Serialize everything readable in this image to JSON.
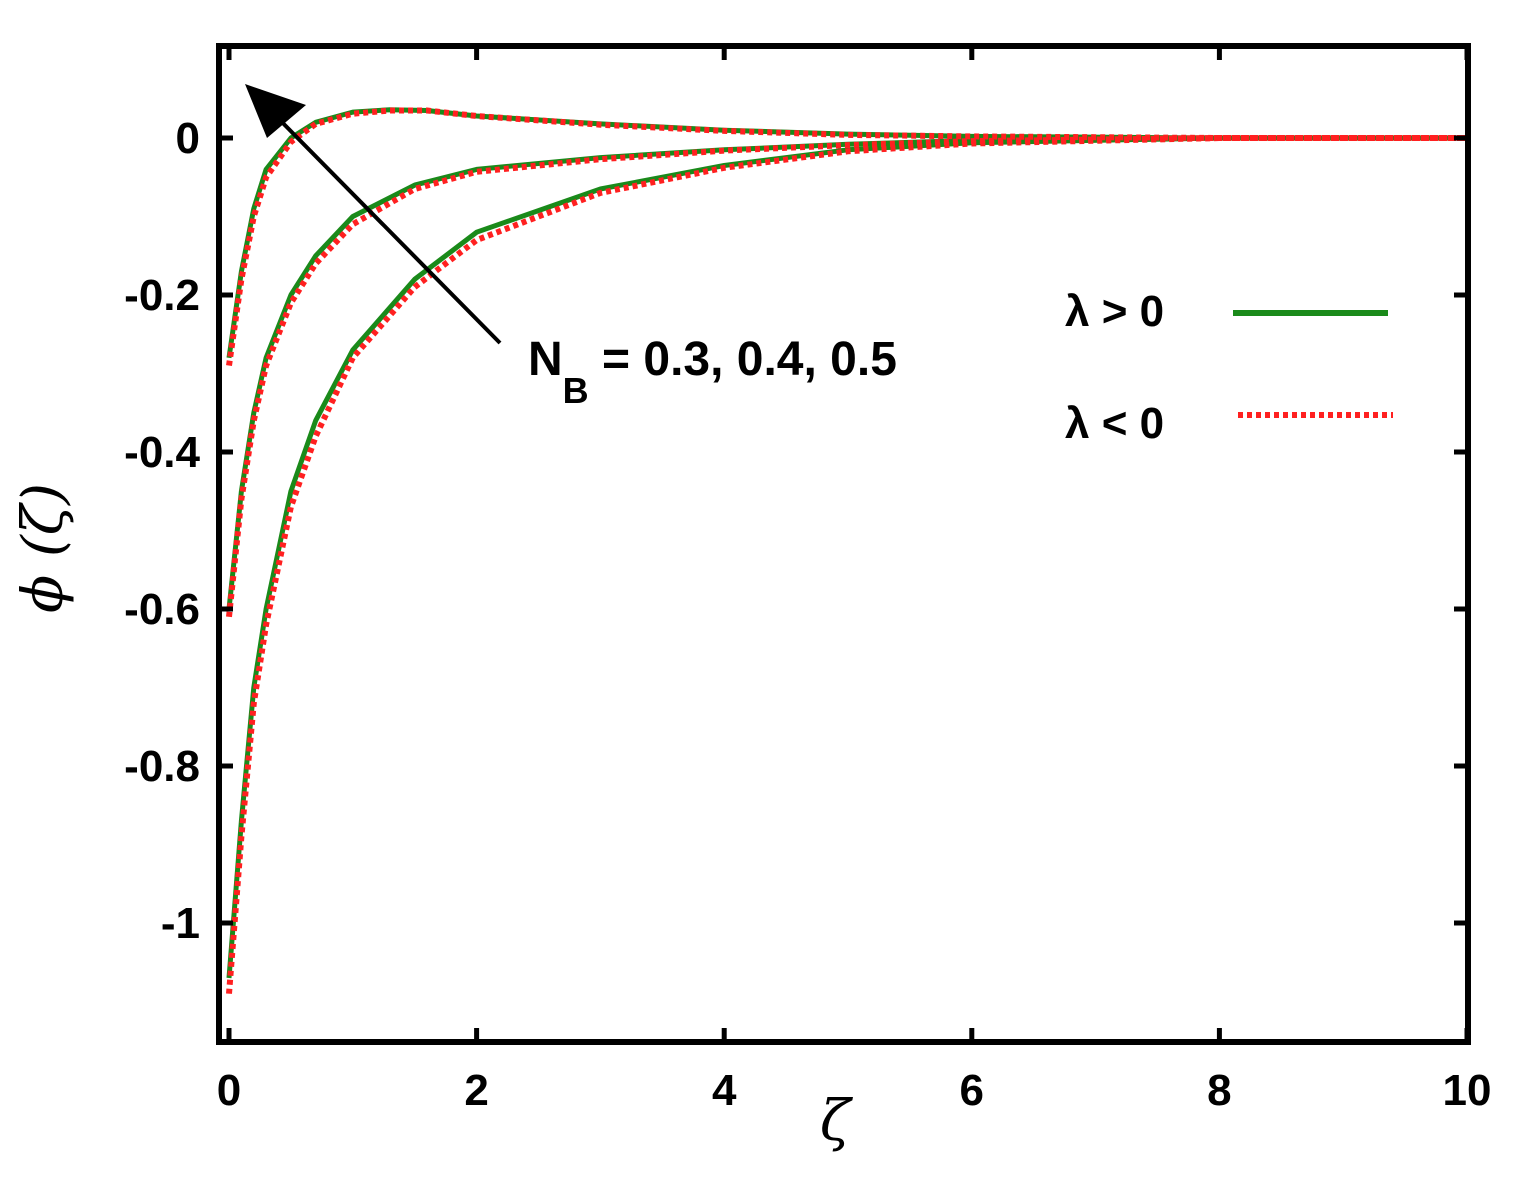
{
  "chart_data": {
    "type": "line",
    "xlabel": "ζ",
    "ylabel": "ϕ (ζ)",
    "xlim": [
      0,
      10
    ],
    "ylim": [
      -1.15,
      0.12
    ],
    "xticks": [
      0,
      2,
      4,
      6,
      8,
      10
    ],
    "xtick_labels": [
      "0",
      "2",
      "4",
      "6",
      "8",
      "10"
    ],
    "yticks": [
      0,
      -0.2,
      -0.4,
      -0.6,
      -0.8,
      -1
    ],
    "ytick_labels": [
      "0",
      "-0.2",
      "-0.4",
      "-0.6",
      "-0.8",
      "-1"
    ],
    "grid": false,
    "legend_position": "right",
    "legend": [
      {
        "label": "λ > 0",
        "color": "#1a8a1a",
        "style": "solid"
      },
      {
        "label": "λ < 0",
        "color": "#ff2020",
        "style": "dotted"
      }
    ],
    "annotation": {
      "main": "N",
      "sub": "B",
      "values": " = 0.3, 0.4, 0.5",
      "arrow": "points toward increasing N_B"
    },
    "series": [
      {
        "group": "λ > 0",
        "color": "#1a8a1a",
        "style": "solid",
        "x": [
          0,
          0.1,
          0.2,
          0.3,
          0.5,
          0.7,
          1.0,
          1.3,
          1.6,
          2.0,
          3.0,
          4.0,
          5.0,
          6.0,
          8.0,
          10.0
        ],
        "y": [
          -0.28,
          -0.17,
          -0.09,
          -0.04,
          0.0,
          0.02,
          0.033,
          0.036,
          0.035,
          0.028,
          0.018,
          0.01,
          0.005,
          0.002,
          0.0,
          0.0
        ]
      },
      {
        "group": "λ > 0",
        "color": "#1a8a1a",
        "style": "solid",
        "x": [
          0,
          0.1,
          0.2,
          0.3,
          0.5,
          0.7,
          1.0,
          1.5,
          2.0,
          3.0,
          4.0,
          5.0,
          6.0,
          8.0,
          10.0
        ],
        "y": [
          -0.6,
          -0.45,
          -0.35,
          -0.28,
          -0.2,
          -0.15,
          -0.1,
          -0.06,
          -0.04,
          -0.025,
          -0.015,
          -0.008,
          -0.003,
          0.0,
          0.0
        ]
      },
      {
        "group": "λ > 0",
        "color": "#1a8a1a",
        "style": "solid",
        "x": [
          0,
          0.1,
          0.2,
          0.3,
          0.5,
          0.7,
          1.0,
          1.5,
          2.0,
          3.0,
          4.0,
          5.0,
          6.0,
          8.0,
          10.0
        ],
        "y": [
          -1.07,
          -0.87,
          -0.7,
          -0.6,
          -0.45,
          -0.36,
          -0.27,
          -0.18,
          -0.12,
          -0.065,
          -0.035,
          -0.015,
          -0.006,
          0.0,
          0.0
        ]
      },
      {
        "group": "λ < 0",
        "color": "#ff2020",
        "style": "dotted",
        "x": [
          0,
          0.1,
          0.2,
          0.3,
          0.5,
          0.7,
          1.0,
          1.3,
          1.6,
          2.0,
          3.0,
          4.0,
          5.0,
          6.0,
          8.0,
          10.0
        ],
        "y": [
          -0.29,
          -0.18,
          -0.1,
          -0.05,
          -0.005,
          0.018,
          0.031,
          0.035,
          0.035,
          0.028,
          0.017,
          0.009,
          0.004,
          0.002,
          0.0,
          0.0
        ]
      },
      {
        "group": "λ < 0",
        "color": "#ff2020",
        "style": "dotted",
        "x": [
          0,
          0.1,
          0.2,
          0.3,
          0.5,
          0.7,
          1.0,
          1.5,
          2.0,
          3.0,
          4.0,
          5.0,
          6.0,
          8.0,
          10.0
        ],
        "y": [
          -0.61,
          -0.46,
          -0.36,
          -0.29,
          -0.21,
          -0.16,
          -0.11,
          -0.065,
          -0.043,
          -0.027,
          -0.016,
          -0.009,
          -0.004,
          0.0,
          0.0
        ]
      },
      {
        "group": "λ < 0",
        "color": "#ff2020",
        "style": "dotted",
        "x": [
          0,
          0.1,
          0.2,
          0.3,
          0.5,
          0.7,
          1.0,
          1.5,
          2.0,
          3.0,
          4.0,
          5.0,
          6.0,
          8.0,
          10.0
        ],
        "y": [
          -1.09,
          -0.89,
          -0.72,
          -0.62,
          -0.47,
          -0.38,
          -0.28,
          -0.19,
          -0.13,
          -0.07,
          -0.038,
          -0.017,
          -0.007,
          0.0,
          0.0
        ]
      }
    ]
  }
}
